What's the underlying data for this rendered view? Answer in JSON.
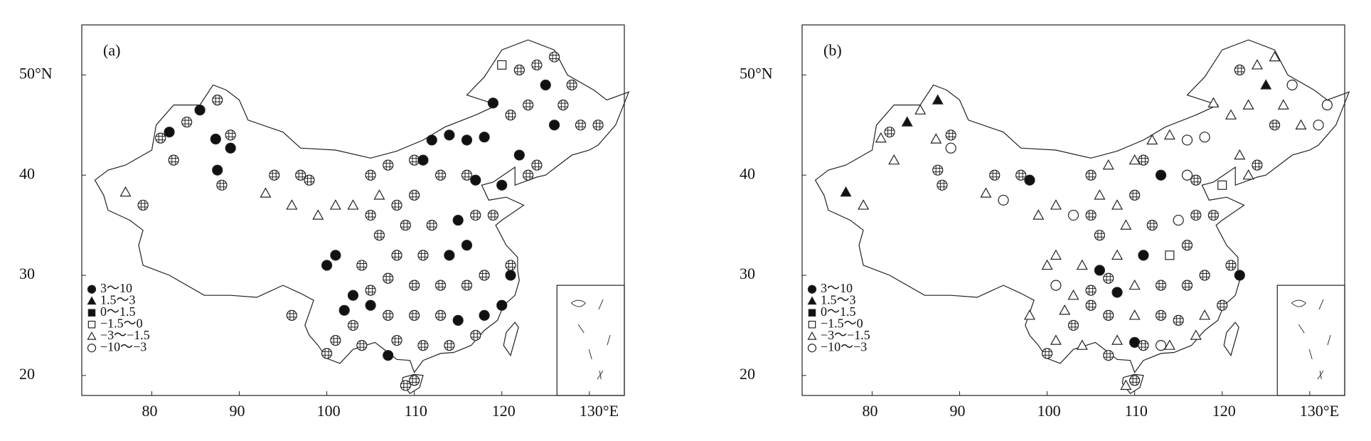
{
  "chart_data": [
    {
      "type": "map",
      "label": "(a)",
      "xlim": [
        72,
        134
      ],
      "ylim": [
        18,
        55
      ],
      "xticks": [
        80,
        90,
        100,
        110,
        120,
        {
          "value": 130,
          "label": "130°E"
        }
      ],
      "yticks": [
        20,
        30,
        40,
        {
          "value": 50,
          "label": "50°N"
        }
      ],
      "legend": [
        "3～10",
        "1.5～3",
        "0～1.5",
        "−1.5～0",
        "−3～−1.5",
        "−10～−3"
      ],
      "stations": [
        [
          77,
          38.3,
          4
        ],
        [
          79,
          37,
          6
        ],
        [
          82.5,
          41.5,
          6
        ],
        [
          82,
          44.3,
          0
        ],
        [
          85.5,
          46.5,
          0
        ],
        [
          81,
          43.7,
          6
        ],
        [
          84,
          45.3,
          6
        ],
        [
          87.5,
          47.5,
          6
        ],
        [
          87.3,
          43.6,
          0
        ],
        [
          89,
          42.7,
          0
        ],
        [
          87.5,
          40.5,
          0
        ],
        [
          88,
          39,
          6
        ],
        [
          89,
          44,
          6
        ],
        [
          94,
          40,
          6
        ],
        [
          93,
          38.2,
          4
        ],
        [
          97,
          40,
          6
        ],
        [
          96,
          37,
          4
        ],
        [
          98,
          39.5,
          6
        ],
        [
          99,
          36,
          4
        ],
        [
          101,
          37,
          4
        ],
        [
          103,
          37,
          4
        ],
        [
          105,
          40,
          6
        ],
        [
          107,
          41,
          6
        ],
        [
          110,
          41.5,
          6
        ],
        [
          111,
          41.5,
          0
        ],
        [
          112,
          43.5,
          0
        ],
        [
          114,
          44,
          0
        ],
        [
          116,
          43.5,
          0
        ],
        [
          118,
          43.8,
          0
        ],
        [
          119,
          47.2,
          0
        ],
        [
          122,
          50.5,
          6
        ],
        [
          124,
          51,
          6
        ],
        [
          126,
          51.8,
          6
        ],
        [
          125,
          49,
          0
        ],
        [
          128,
          49,
          6
        ],
        [
          127,
          47,
          6
        ],
        [
          126,
          45,
          0
        ],
        [
          129,
          45,
          6
        ],
        [
          131,
          45,
          6
        ],
        [
          123,
          47,
          6
        ],
        [
          121,
          46,
          6
        ],
        [
          122,
          42,
          0
        ],
        [
          124,
          41,
          6
        ],
        [
          120,
          39,
          0
        ],
        [
          117,
          39.5,
          0
        ],
        [
          116,
          40,
          6
        ],
        [
          113,
          40,
          6
        ],
        [
          110,
          38,
          6
        ],
        [
          108,
          37,
          6
        ],
        [
          105,
          36,
          6
        ],
        [
          106,
          34,
          6
        ],
        [
          109,
          35,
          6
        ],
        [
          112,
          35,
          6
        ],
        [
          115,
          35.5,
          0
        ],
        [
          117,
          36,
          6
        ],
        [
          119,
          36,
          6
        ],
        [
          116,
          33,
          0
        ],
        [
          114,
          32,
          0
        ],
        [
          111,
          32,
          6
        ],
        [
          108,
          32,
          6
        ],
        [
          104,
          31,
          6
        ],
        [
          101,
          32,
          0
        ],
        [
          100,
          31,
          0
        ],
        [
          103,
          28,
          0
        ],
        [
          102,
          26.5,
          0
        ],
        [
          105,
          28.5,
          6
        ],
        [
          107,
          29.7,
          6
        ],
        [
          110,
          29,
          6
        ],
        [
          113,
          29,
          6
        ],
        [
          116,
          29,
          6
        ],
        [
          118,
          30,
          6
        ],
        [
          121,
          30,
          0
        ],
        [
          120,
          27,
          0
        ],
        [
          118,
          26,
          0
        ],
        [
          115,
          25.5,
          0
        ],
        [
          113,
          26,
          6
        ],
        [
          110,
          26,
          6
        ],
        [
          107,
          26,
          6
        ],
        [
          105,
          27,
          0
        ],
        [
          103,
          25,
          6
        ],
        [
          101,
          23.5,
          6
        ],
        [
          100,
          22.2,
          6
        ],
        [
          104,
          23,
          6
        ],
        [
          107,
          22,
          0
        ],
        [
          108,
          23.5,
          6
        ],
        [
          111,
          23,
          6
        ],
        [
          114,
          23,
          6
        ],
        [
          117,
          24,
          6
        ],
        [
          110,
          19.5,
          6
        ],
        [
          109,
          19,
          6
        ],
        [
          121,
          31,
          6
        ],
        [
          123,
          40,
          6
        ],
        [
          106,
          38,
          4
        ],
        [
          96,
          26,
          6
        ],
        [
          120,
          51,
          3
        ]
      ]
    },
    {
      "type": "map",
      "label": "(b)",
      "xlim": [
        72,
        134
      ],
      "ylim": [
        18,
        55
      ],
      "xticks": [
        80,
        90,
        100,
        110,
        120,
        {
          "value": 130,
          "label": "130°E"
        }
      ],
      "yticks": [
        20,
        30,
        40,
        {
          "value": 50,
          "label": "50°N"
        }
      ],
      "legend": [
        "3～10",
        "1.5～3",
        "0～1.5",
        "−1.5～0",
        "−3～−1.5",
        "−10～−3"
      ],
      "stations": [
        [
          77,
          38.3,
          1
        ],
        [
          79,
          37,
          4
        ],
        [
          82.5,
          41.5,
          4
        ],
        [
          82,
          44.3,
          6
        ],
        [
          85.5,
          46.5,
          4
        ],
        [
          81,
          43.7,
          4
        ],
        [
          84,
          45.3,
          1
        ],
        [
          87.5,
          47.5,
          1
        ],
        [
          87.3,
          43.6,
          4
        ],
        [
          89,
          42.7,
          5
        ],
        [
          87.5,
          40.5,
          6
        ],
        [
          88,
          39,
          6
        ],
        [
          89,
          44,
          6
        ],
        [
          94,
          40,
          6
        ],
        [
          93,
          38.2,
          4
        ],
        [
          95,
          37.5,
          5
        ],
        [
          97,
          40,
          6
        ],
        [
          98,
          39.5,
          0
        ],
        [
          99,
          36,
          4
        ],
        [
          101,
          37,
          4
        ],
        [
          103,
          36,
          5
        ],
        [
          105,
          40,
          6
        ],
        [
          107,
          41,
          4
        ],
        [
          110,
          41.5,
          4
        ],
        [
          111,
          41.5,
          6
        ],
        [
          112,
          43.5,
          4
        ],
        [
          114,
          44,
          4
        ],
        [
          116,
          43.5,
          5
        ],
        [
          118,
          43.8,
          5
        ],
        [
          119,
          47.2,
          4
        ],
        [
          122,
          50.5,
          6
        ],
        [
          124,
          51,
          4
        ],
        [
          126,
          51.8,
          4
        ],
        [
          125,
          49,
          1
        ],
        [
          128,
          49,
          5
        ],
        [
          127,
          47,
          4
        ],
        [
          126,
          45,
          6
        ],
        [
          129,
          45,
          4
        ],
        [
          131,
          45,
          5
        ],
        [
          132,
          47,
          5
        ],
        [
          123,
          47,
          4
        ],
        [
          121,
          46,
          4
        ],
        [
          122,
          42,
          4
        ],
        [
          124,
          41,
          6
        ],
        [
          120,
          39,
          3
        ],
        [
          117,
          39.5,
          6
        ],
        [
          116,
          40,
          5
        ],
        [
          113,
          40,
          0
        ],
        [
          110,
          38,
          6
        ],
        [
          108,
          37,
          4
        ],
        [
          105,
          36,
          6
        ],
        [
          106,
          34,
          6
        ],
        [
          109,
          35,
          4
        ],
        [
          112,
          35,
          6
        ],
        [
          115,
          35.5,
          5
        ],
        [
          117,
          36,
          6
        ],
        [
          119,
          36,
          6
        ],
        [
          116,
          33,
          6
        ],
        [
          114,
          32,
          3
        ],
        [
          111,
          32,
          0
        ],
        [
          108,
          32,
          4
        ],
        [
          104,
          31,
          4
        ],
        [
          101,
          32,
          4
        ],
        [
          100,
          31,
          4
        ],
        [
          103,
          28,
          4
        ],
        [
          101,
          29,
          5
        ],
        [
          102,
          26.5,
          4
        ],
        [
          105,
          28.5,
          6
        ],
        [
          106,
          30.5,
          0
        ],
        [
          107,
          29.7,
          6
        ],
        [
          110,
          29,
          4
        ],
        [
          113,
          29,
          6
        ],
        [
          116,
          29,
          6
        ],
        [
          118,
          30,
          6
        ],
        [
          122,
          30,
          0
        ],
        [
          120,
          27,
          6
        ],
        [
          118,
          26,
          4
        ],
        [
          115,
          25.5,
          6
        ],
        [
          113,
          26,
          6
        ],
        [
          110,
          26,
          4
        ],
        [
          108,
          28.3,
          0
        ],
        [
          107,
          26,
          6
        ],
        [
          105,
          27,
          6
        ],
        [
          103,
          25,
          6
        ],
        [
          101,
          23.5,
          4
        ],
        [
          100,
          22.2,
          6
        ],
        [
          104,
          23,
          4
        ],
        [
          107,
          22,
          6
        ],
        [
          108,
          23.5,
          4
        ],
        [
          110,
          23.3,
          0
        ],
        [
          111,
          23,
          6
        ],
        [
          113,
          23,
          5
        ],
        [
          114,
          23,
          4
        ],
        [
          117,
          24,
          4
        ],
        [
          110,
          19.5,
          6
        ],
        [
          109,
          19,
          4
        ],
        [
          121,
          31,
          6
        ],
        [
          123,
          40,
          4
        ],
        [
          106,
          38,
          4
        ],
        [
          98,
          26,
          4
        ]
      ]
    }
  ]
}
